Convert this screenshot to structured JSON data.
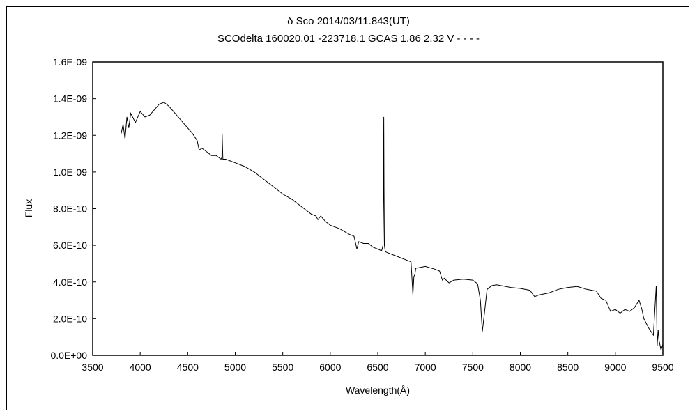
{
  "chart_data": {
    "type": "line",
    "title": "δ Sco 2014/03/11.843(UT)",
    "subtitle": "SCOdelta 160020.01 -223718.1 GCAS 1.86 2.32 V - - - -",
    "xlabel": "Wavelength(Å)",
    "ylabel": "Flux",
    "xlim": [
      3500,
      9500
    ],
    "ylim": [
      0,
      1.6e-09
    ],
    "x_ticks": [
      3500,
      4000,
      4500,
      5000,
      5500,
      6000,
      6500,
      7000,
      7500,
      8000,
      8500,
      9000,
      9500
    ],
    "x_tick_labels": [
      "3500",
      "4000",
      "4500",
      "5000",
      "5500",
      "6000",
      "6500",
      "7000",
      "7500",
      "8000",
      "8500",
      "9000",
      "9500"
    ],
    "y_ticks": [
      0,
      2e-10,
      4e-10,
      6e-10,
      8e-10,
      1e-09,
      1.2e-09,
      1.4e-09,
      1.6e-09
    ],
    "y_tick_labels": [
      "0.0E+00",
      "2.0E-10",
      "4.0E-10",
      "6.0E-10",
      "8.0E-10",
      "1.0E-09",
      "1.2E-09",
      "1.4E-09",
      "1.6E-09"
    ],
    "grid": false,
    "legend": "none",
    "series": [
      {
        "color": "#000000",
        "x": [
          3800,
          3820,
          3840,
          3860,
          3880,
          3900,
          3950,
          4000,
          4050,
          4100,
          4150,
          4200,
          4250,
          4300,
          4350,
          4400,
          4450,
          4500,
          4550,
          4600,
          4620,
          4650,
          4700,
          4750,
          4800,
          4850,
          4860,
          4862,
          4870,
          4900,
          4950,
          5000,
          5100,
          5200,
          5300,
          5400,
          5500,
          5600,
          5700,
          5750,
          5800,
          5850,
          5870,
          5900,
          5950,
          6000,
          6100,
          6200,
          6250,
          6280,
          6300,
          6350,
          6400,
          6450,
          6500,
          6540,
          6555,
          6560,
          6563,
          6566,
          6570,
          6580,
          6600,
          6700,
          6800,
          6850,
          6870,
          6880,
          6890,
          6900,
          6950,
          7000,
          7100,
          7150,
          7180,
          7200,
          7250,
          7300,
          7400,
          7500,
          7550,
          7580,
          7600,
          7620,
          7650,
          7700,
          7750,
          7800,
          7900,
          8000,
          8100,
          8150,
          8200,
          8300,
          8400,
          8500,
          8600,
          8700,
          8800,
          8850,
          8900,
          8950,
          9000,
          9050,
          9100,
          9150,
          9200,
          9250,
          9280,
          9300,
          9350,
          9400,
          9430,
          9440,
          9450,
          9460,
          9480,
          9500
        ],
        "y": [
          1.21e-09,
          1.26e-09,
          1.18e-09,
          1.3e-09,
          1.24e-09,
          1.32e-09,
          1.27e-09,
          1.33e-09,
          1.3e-09,
          1.31e-09,
          1.34e-09,
          1.37e-09,
          1.38e-09,
          1.36e-09,
          1.33e-09,
          1.3e-09,
          1.27e-09,
          1.24e-09,
          1.21e-09,
          1.17e-09,
          1.12e-09,
          1.13e-09,
          1.11e-09,
          1.09e-09,
          1.09e-09,
          1.07e-09,
          1.08e-09,
          1.21e-09,
          1.07e-09,
          1.07e-09,
          1.06e-09,
          1.05e-09,
          1.03e-09,
          1e-09,
          9.6e-10,
          9.2e-10,
          8.8e-10,
          8.5e-10,
          8.1e-10,
          7.9e-10,
          7.7e-10,
          7.6e-10,
          7.4e-10,
          7.6e-10,
          7.3e-10,
          7.1e-10,
          6.9e-10,
          6.6e-10,
          6.5e-10,
          5.8e-10,
          6.2e-10,
          6.1e-10,
          6.1e-10,
          5.9e-10,
          5.8e-10,
          5.7e-10,
          6e-10,
          9e-10,
          1.3e-09,
          9e-10,
          6e-10,
          5.65e-10,
          5.6e-10,
          5.4e-10,
          5.2e-10,
          5.1e-10,
          3.3e-10,
          4.3e-10,
          4.4e-10,
          4.75e-10,
          4.8e-10,
          4.85e-10,
          4.7e-10,
          4.6e-10,
          4.1e-10,
          4.2e-10,
          3.95e-10,
          4.1e-10,
          4.15e-10,
          4.1e-10,
          3.9e-10,
          3e-10,
          1.3e-10,
          2.2e-10,
          3.6e-10,
          3.8e-10,
          3.85e-10,
          3.8e-10,
          3.7e-10,
          3.65e-10,
          3.55e-10,
          3.2e-10,
          3.3e-10,
          3.4e-10,
          3.6e-10,
          3.7e-10,
          3.75e-10,
          3.6e-10,
          3.5e-10,
          3.1e-10,
          3e-10,
          2.4e-10,
          2.5e-10,
          2.3e-10,
          2.5e-10,
          2.4e-10,
          2.6e-10,
          3e-10,
          2.5e-10,
          2e-10,
          1.5e-10,
          1.1e-10,
          3.8e-10,
          5e-11,
          1.4e-10,
          8e-11,
          3e-11,
          6e-11
        ]
      }
    ]
  }
}
